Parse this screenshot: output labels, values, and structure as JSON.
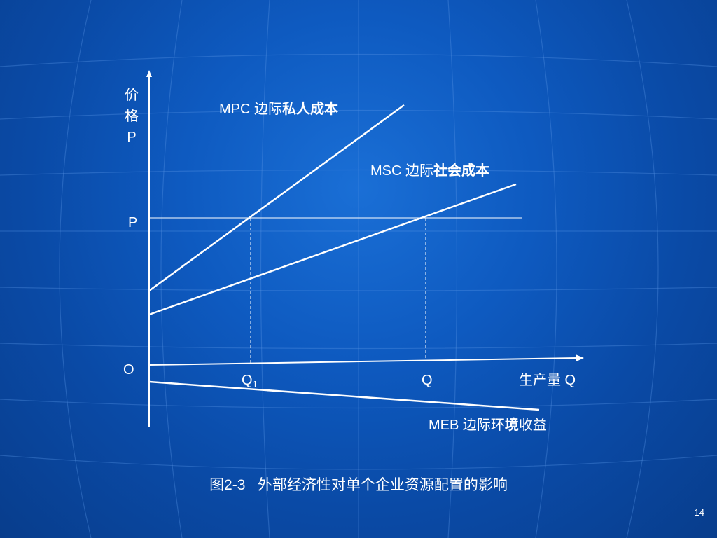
{
  "diagram": {
    "y_axis_label": [
      "价",
      "格",
      "P"
    ],
    "x_axis_label": "生产量 Q",
    "origin_label": "O",
    "price_label": "P",
    "q1_label": "Q",
    "q1_subscript": "1",
    "q_label": "Q",
    "curves": {
      "mpc": {
        "abbr": "MPC",
        "prefix": "边际",
        "rest": "私人成本"
      },
      "msc": {
        "abbr": "MSC",
        "prefix": "边际",
        "rest": "社会成本"
      },
      "meb": {
        "abbr": "MEB",
        "prefix": "边际环",
        "bold": "境",
        "rest": "收益"
      }
    }
  },
  "caption": {
    "figure": "图2-3",
    "title": "外部经济性对单个企业资源配置的影响"
  },
  "page_number": "14",
  "colors": {
    "line": "#ffffff",
    "background": "#0e5ac0"
  }
}
